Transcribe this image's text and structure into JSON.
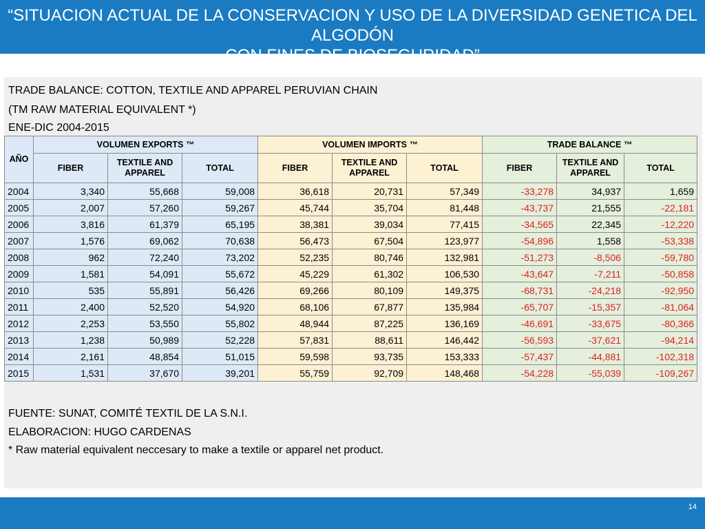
{
  "slide": {
    "title_line1": "“SITUACION ACTUAL DE LA CONSERVACION Y USO DE LA DIVERSIDAD GENETICA DEL ALGODÓN",
    "title_line2": "CON FINES DE BIOSEGURIDAD”",
    "page_number": "14"
  },
  "table_header": {
    "line1": "TRADE BALANCE: COTTON, TEXTILE AND APPAREL PERUVIAN CHAIN",
    "line2": "(TM RAW MATERIAL  EQUIVALENT *)",
    "line3": "ENE-DIC 2004-2015"
  },
  "columns": {
    "year": "AÑO",
    "exports": "VOLUMEN EXPORTS ™",
    "imports": "VOLUMEN IMPORTS ™",
    "balance": "TRADE BALANCE ™",
    "fiber": "FIBER",
    "textile_line1": "TEXTILE AND",
    "textile_line2": "APPAREL",
    "total": "TOTAL"
  },
  "rows": [
    {
      "year": "2004",
      "exp_fiber": "3,340",
      "exp_textile": "55,668",
      "exp_total": "59,008",
      "imp_fiber": "36,618",
      "imp_textile": "20,731",
      "imp_total": "57,349",
      "bal_fiber": "-33,278",
      "bal_textile": "34,937",
      "bal_total": "1,659"
    },
    {
      "year": "2005",
      "exp_fiber": "2,007",
      "exp_textile": "57,260",
      "exp_total": "59,267",
      "imp_fiber": "45,744",
      "imp_textile": "35,704",
      "imp_total": "81,448",
      "bal_fiber": "-43,737",
      "bal_textile": "21,555",
      "bal_total": "-22,181"
    },
    {
      "year": "2006",
      "exp_fiber": "3,816",
      "exp_textile": "61,379",
      "exp_total": "65,195",
      "imp_fiber": "38,381",
      "imp_textile": "39,034",
      "imp_total": "77,415",
      "bal_fiber": "-34,565",
      "bal_textile": "22,345",
      "bal_total": "-12,220"
    },
    {
      "year": "2007",
      "exp_fiber": "1,576",
      "exp_textile": "69,062",
      "exp_total": "70,638",
      "imp_fiber": "56,473",
      "imp_textile": "67,504",
      "imp_total": "123,977",
      "bal_fiber": "-54,896",
      "bal_textile": "1,558",
      "bal_total": "-53,338"
    },
    {
      "year": "2008",
      "exp_fiber": "962",
      "exp_textile": "72,240",
      "exp_total": "73,202",
      "imp_fiber": "52,235",
      "imp_textile": "80,746",
      "imp_total": "132,981",
      "bal_fiber": "-51,273",
      "bal_textile": "-8,506",
      "bal_total": "-59,780"
    },
    {
      "year": "2009",
      "exp_fiber": "1,581",
      "exp_textile": "54,091",
      "exp_total": "55,672",
      "imp_fiber": "45,229",
      "imp_textile": "61,302",
      "imp_total": "106,530",
      "bal_fiber": "-43,647",
      "bal_textile": "-7,211",
      "bal_total": "-50,858"
    },
    {
      "year": "2010",
      "exp_fiber": "535",
      "exp_textile": "55,891",
      "exp_total": "56,426",
      "imp_fiber": "69,266",
      "imp_textile": "80,109",
      "imp_total": "149,375",
      "bal_fiber": "-68,731",
      "bal_textile": "-24,218",
      "bal_total": "-92,950"
    },
    {
      "year": "2011",
      "exp_fiber": "2,400",
      "exp_textile": "52,520",
      "exp_total": "54,920",
      "imp_fiber": "68,106",
      "imp_textile": "67,877",
      "imp_total": "135,984",
      "bal_fiber": "-65,707",
      "bal_textile": "-15,357",
      "bal_total": "-81,064"
    },
    {
      "year": "2012",
      "exp_fiber": "2,253",
      "exp_textile": "53,550",
      "exp_total": "55,802",
      "imp_fiber": "48,944",
      "imp_textile": "87,225",
      "imp_total": "136,169",
      "bal_fiber": "-46,691",
      "bal_textile": "-33,675",
      "bal_total": "-80,366"
    },
    {
      "year": "2013",
      "exp_fiber": "1,238",
      "exp_textile": "50,989",
      "exp_total": "52,228",
      "imp_fiber": "57,831",
      "imp_textile": "88,611",
      "imp_total": "146,442",
      "bal_fiber": "-56,593",
      "bal_textile": "-37,621",
      "bal_total": "-94,214"
    },
    {
      "year": "2014",
      "exp_fiber": "2,161",
      "exp_textile": "48,854",
      "exp_total": "51,015",
      "imp_fiber": "59,598",
      "imp_textile": "93,735",
      "imp_total": "153,333",
      "bal_fiber": "-57,437",
      "bal_textile": "-44,881",
      "bal_total": "-102,318"
    },
    {
      "year": "2015",
      "exp_fiber": "1,531",
      "exp_textile": "37,670",
      "exp_total": "39,201",
      "imp_fiber": "55,759",
      "imp_textile": "92,709",
      "imp_total": "148,468",
      "bal_fiber": "-54,228",
      "bal_textile": "-55,039",
      "bal_total": "-109,267"
    }
  ],
  "footer": {
    "source": "FUENTE: SUNAT, COMITÉ TEXTIL DE LA S.N.I.",
    "author": "ELABORACION: HUGO CARDENAS",
    "note": "* Raw material equivalent neccesary to make a textile or apparel  net product."
  },
  "colors": {
    "bar_blue": "#1a7bc2",
    "exports_fill": "#dde9f6",
    "imports_fill": "#fdf1d4",
    "balance_fill": "#e4efdc",
    "negative_text": "#e0201f"
  }
}
